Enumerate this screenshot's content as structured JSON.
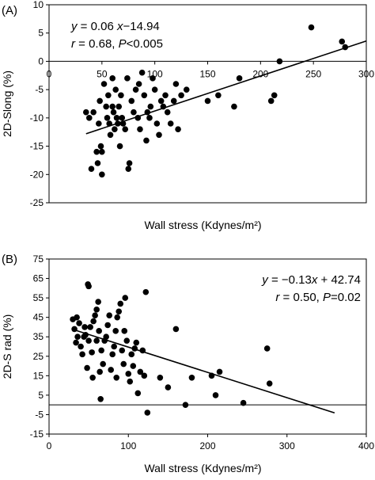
{
  "chart_data": [
    {
      "type": "scatter",
      "panel_label": "(A)",
      "xlabel": "Wall stress (Kdynes/m²)",
      "ylabel": "2D-Slong (%)",
      "xlim": [
        0,
        300
      ],
      "ylim": [
        -25,
        10
      ],
      "x_ticks": [
        "0",
        "50",
        "100",
        "150",
        "200",
        "250",
        "300"
      ],
      "y_ticks": [
        "10",
        "5",
        "0",
        "-5",
        "-10",
        "-15",
        "-20",
        "-25"
      ],
      "x_tick_values": [
        0,
        50,
        100,
        150,
        200,
        250,
        300
      ],
      "y_tick_values": [
        10,
        5,
        0,
        -5,
        -10,
        -15,
        -20,
        -25
      ],
      "x_ticks_on_zero_line": true,
      "annotation": {
        "line1_prefix": "y",
        "line1_mid": " = 0.06 ",
        "line1_var": "x",
        "line1_suffix": "−14.94",
        "line2_r": "r",
        "line2_mid": " = 0.68,  ",
        "line2_p": "P",
        "line2_suffix": "<0.005"
      },
      "regression": {
        "x": [
          35,
          300
        ],
        "y": [
          -12.8,
          3.6
        ]
      },
      "points": [
        [
          35,
          -9
        ],
        [
          38,
          -10
        ],
        [
          40,
          -19
        ],
        [
          42,
          -9
        ],
        [
          45,
          -16
        ],
        [
          46,
          -18
        ],
        [
          47,
          -11
        ],
        [
          48,
          -7
        ],
        [
          49,
          -15
        ],
        [
          50,
          -16
        ],
        [
          50,
          -20
        ],
        [
          52,
          -4
        ],
        [
          54,
          -8
        ],
        [
          55,
          -10
        ],
        [
          56,
          -6
        ],
        [
          57,
          -11
        ],
        [
          58,
          -13
        ],
        [
          60,
          -3
        ],
        [
          60,
          -8
        ],
        [
          61,
          -9
        ],
        [
          62,
          -12
        ],
        [
          63,
          -5
        ],
        [
          64,
          -10
        ],
        [
          65,
          -11
        ],
        [
          66,
          -8
        ],
        [
          67,
          -15
        ],
        [
          68,
          -6
        ],
        [
          69,
          -10
        ],
        [
          70,
          -11
        ],
        [
          72,
          -12
        ],
        [
          74,
          -3
        ],
        [
          75,
          -19
        ],
        [
          76,
          -18
        ],
        [
          78,
          -7
        ],
        [
          80,
          -9
        ],
        [
          82,
          -5
        ],
        [
          84,
          -10
        ],
        [
          85,
          -4
        ],
        [
          86,
          -12
        ],
        [
          88,
          -2
        ],
        [
          90,
          -6
        ],
        [
          92,
          -14
        ],
        [
          93,
          -9
        ],
        [
          95,
          -10
        ],
        [
          96,
          -8
        ],
        [
          98,
          -3
        ],
        [
          100,
          -5
        ],
        [
          102,
          -11
        ],
        [
          104,
          -13
        ],
        [
          106,
          -7
        ],
        [
          108,
          -8
        ],
        [
          110,
          -6
        ],
        [
          112,
          -9
        ],
        [
          115,
          -11
        ],
        [
          118,
          -7
        ],
        [
          120,
          -4
        ],
        [
          122,
          -12
        ],
        [
          125,
          -6
        ],
        [
          130,
          -5
        ],
        [
          150,
          -7
        ],
        [
          160,
          -6
        ],
        [
          175,
          -8
        ],
        [
          180,
          -3
        ],
        [
          210,
          -7
        ],
        [
          213,
          -6
        ],
        [
          218,
          0
        ],
        [
          248,
          6
        ],
        [
          277,
          3.5
        ],
        [
          280,
          2.5
        ]
      ]
    },
    {
      "type": "scatter",
      "panel_label": "(B)",
      "xlabel": "Wall stress (Kdynes/m²)",
      "ylabel": "2D-S rad (%)",
      "xlim": [
        0,
        400
      ],
      "ylim": [
        -15,
        75
      ],
      "x_ticks": [
        "0",
        "100",
        "200",
        "300",
        "400"
      ],
      "y_ticks": [
        "75",
        "65",
        "55",
        "45",
        "35",
        "25",
        "15",
        "5",
        "-5",
        "-15"
      ],
      "x_tick_values": [
        0,
        100,
        200,
        300,
        400
      ],
      "y_tick_values": [
        75,
        65,
        55,
        45,
        35,
        25,
        15,
        5,
        -5,
        -15
      ],
      "zero_line": true,
      "annotation": {
        "line1_prefix": "y",
        "line1_mid": " = −0.13",
        "line1_var": "x",
        "line1_suffix": " + 42.74",
        "line2_r": "r",
        "line2_mid": " = 0.50,  ",
        "line2_p": "P",
        "line2_suffix": "=0.02"
      },
      "regression": {
        "x": [
          30,
          360
        ],
        "y": [
          38.8,
          -4.1
        ]
      },
      "points": [
        [
          30,
          44
        ],
        [
          32,
          39
        ],
        [
          34,
          32
        ],
        [
          35,
          45
        ],
        [
          36,
          35
        ],
        [
          38,
          42
        ],
        [
          40,
          30
        ],
        [
          42,
          26
        ],
        [
          44,
          35
        ],
        [
          45,
          40
        ],
        [
          46,
          36
        ],
        [
          48,
          19
        ],
        [
          49,
          62
        ],
        [
          50,
          61
        ],
        [
          50,
          33
        ],
        [
          52,
          40
        ],
        [
          54,
          27
        ],
        [
          55,
          14
        ],
        [
          56,
          43
        ],
        [
          58,
          46
        ],
        [
          60,
          49
        ],
        [
          60,
          33
        ],
        [
          62,
          53
        ],
        [
          63,
          38
        ],
        [
          64,
          17
        ],
        [
          65,
          3
        ],
        [
          66,
          28
        ],
        [
          68,
          21
        ],
        [
          70,
          33
        ],
        [
          72,
          35
        ],
        [
          74,
          41
        ],
        [
          76,
          46
        ],
        [
          78,
          18
        ],
        [
          80,
          26
        ],
        [
          82,
          30
        ],
        [
          84,
          38
        ],
        [
          85,
          14
        ],
        [
          86,
          45
        ],
        [
          88,
          48
        ],
        [
          90,
          52
        ],
        [
          92,
          28
        ],
        [
          94,
          21
        ],
        [
          95,
          38
        ],
        [
          96,
          55
        ],
        [
          98,
          33
        ],
        [
          100,
          16
        ],
        [
          102,
          12
        ],
        [
          104,
          26
        ],
        [
          106,
          20
        ],
        [
          108,
          29
        ],
        [
          110,
          32
        ],
        [
          112,
          6
        ],
        [
          115,
          17
        ],
        [
          118,
          28
        ],
        [
          120,
          15
        ],
        [
          122,
          58
        ],
        [
          124,
          -4
        ],
        [
          140,
          14
        ],
        [
          150,
          9
        ],
        [
          160,
          39
        ],
        [
          172,
          0
        ],
        [
          180,
          14
        ],
        [
          205,
          15
        ],
        [
          210,
          5
        ],
        [
          215,
          17
        ],
        [
          245,
          1
        ],
        [
          275,
          29
        ],
        [
          278,
          11
        ]
      ]
    }
  ]
}
